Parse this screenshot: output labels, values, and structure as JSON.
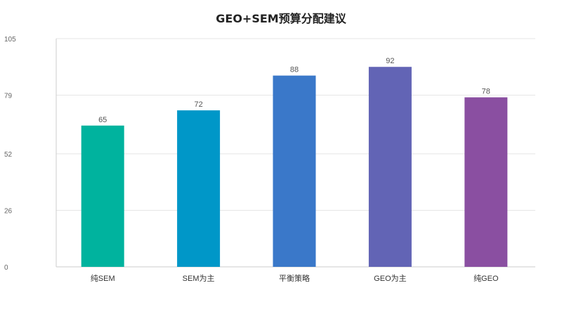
{
  "chart_data": {
    "type": "bar",
    "title": "GEO+SEM预算分配建议",
    "xlabel": "",
    "ylabel": "",
    "categories": [
      "纯SEM",
      "SEM为主",
      "平衡策略",
      "GEO为主",
      "纯GEO"
    ],
    "values": [
      65,
      72,
      88,
      92,
      78
    ],
    "ylim": [
      0,
      105
    ],
    "yticks": [
      0,
      26,
      52,
      79,
      105
    ],
    "grid": true,
    "legend": "none",
    "colors": [
      "#00b39e",
      "#0097c8",
      "#3a78c9",
      "#6264b5",
      "#8a4fa1"
    ]
  }
}
